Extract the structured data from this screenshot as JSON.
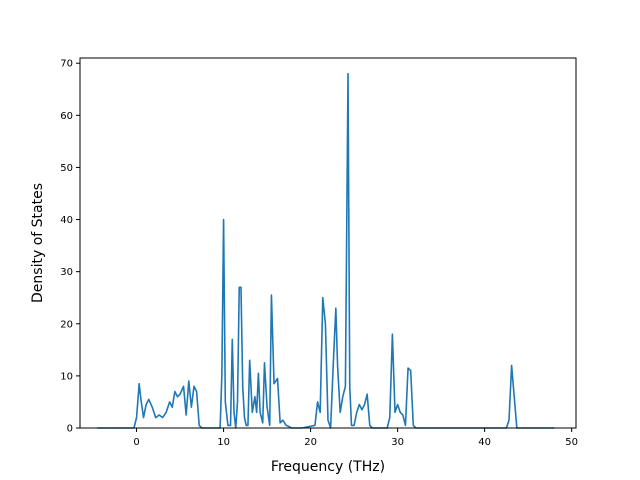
{
  "chart_data": {
    "type": "line",
    "title": "",
    "xlabel": "Frequency (THz)",
    "ylabel": "Density of States",
    "xlim": [
      -6.5,
      50.5
    ],
    "ylim": [
      0,
      71
    ],
    "xticks": [
      0,
      10,
      20,
      30,
      40,
      50
    ],
    "yticks": [
      0,
      10,
      20,
      30,
      40,
      50,
      60,
      70
    ],
    "grid": false,
    "legend": "none",
    "series": [
      {
        "color": "#1f77b4",
        "x": [
          -4.5,
          -0.3,
          0,
          0.3,
          0.5,
          0.8,
          1.1,
          1.4,
          1.8,
          2.2,
          2.6,
          3.0,
          3.4,
          3.8,
          4.1,
          4.4,
          4.7,
          5.0,
          5.4,
          5.7,
          6.0,
          6.3,
          6.6,
          6.9,
          7.2,
          7.5,
          9.6,
          9.8,
          10.0,
          10.2,
          10.5,
          10.8,
          11.0,
          11.2,
          11.4,
          11.6,
          11.8,
          12.0,
          12.2,
          12.4,
          12.6,
          12.8,
          13.0,
          13.3,
          13.6,
          13.8,
          14.0,
          14.2,
          14.5,
          14.7,
          15.0,
          15.3,
          15.5,
          15.8,
          16.0,
          16.2,
          16.5,
          16.8,
          17.2,
          17.5,
          17.8,
          18.2,
          18.5,
          19.0,
          20.5,
          20.8,
          21.1,
          21.4,
          21.7,
          22.0,
          22.3,
          22.6,
          22.9,
          23.1,
          23.4,
          23.7,
          24.0,
          24.3,
          24.5,
          24.7,
          25.0,
          25.3,
          25.6,
          25.9,
          26.2,
          26.5,
          26.8,
          27.1,
          27.4,
          28.8,
          29.1,
          29.4,
          29.7,
          30.0,
          30.3,
          30.6,
          30.9,
          31.2,
          31.5,
          31.8,
          32.1,
          32.4,
          42.5,
          42.8,
          43.1,
          43.4,
          43.7,
          44.0,
          48.0
        ],
        "y": [
          0,
          0,
          2,
          8.5,
          5.5,
          2,
          4.5,
          5.5,
          4,
          2,
          2.5,
          2,
          3,
          5,
          4,
          7,
          6,
          6.5,
          8,
          2.5,
          9,
          4,
          8,
          7,
          0.5,
          0,
          0,
          10,
          40,
          5,
          0.5,
          0.5,
          17,
          3,
          0,
          5,
          27,
          27,
          8,
          2,
          0.5,
          0.5,
          13,
          3,
          6,
          3,
          10.5,
          3,
          1,
          12.5,
          4,
          0.5,
          25.5,
          8.5,
          9,
          9.5,
          1,
          1.5,
          0.5,
          0.3,
          0,
          0,
          0,
          0,
          0.5,
          5,
          3,
          25,
          20,
          1.5,
          0,
          12,
          23,
          12,
          3,
          6,
          8,
          68,
          8,
          0.5,
          0.5,
          3,
          4.5,
          3.5,
          4.5,
          6.5,
          0.5,
          0,
          0,
          0,
          2,
          18,
          3,
          4.5,
          3,
          2.5,
          0.5,
          11.5,
          11,
          0.5,
          0,
          0,
          0,
          1.5,
          12,
          6,
          0,
          0,
          0
        ]
      }
    ]
  }
}
